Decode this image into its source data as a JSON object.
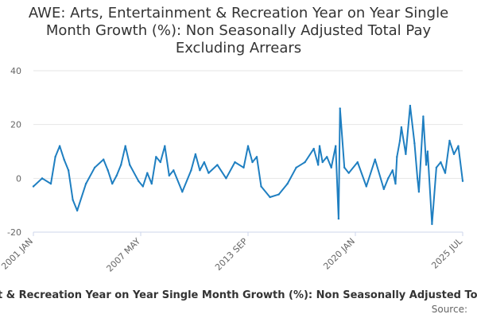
{
  "chart_data": {
    "type": "line",
    "title": "AWE: Arts, Entertainment & Recreation Year on Year Single\nMonth Growth (%): Non Seasonally Adjusted Total Pay\nExcluding Arrears",
    "xlabel": "",
    "ylabel": "",
    "x_ticks": [
      "2001 JAN",
      "2007 MAY",
      "2013 SEP",
      "2020 JAN",
      "2025 JUL"
    ],
    "y_ticks": [
      -20,
      0,
      20,
      40
    ],
    "ylim": [
      -20,
      40
    ],
    "xlim": [
      "2001-01",
      "2025-07"
    ],
    "grid": true,
    "legend": {
      "placement": "bottom",
      "label": "AWE: Arts, Entertainment & Recreation Year on Year Single Month Growth (%): Non Seasonally Adjusted Total Pay Excluding Arrears"
    },
    "source_label": "Source:",
    "line_color": "#1f7fc1",
    "series": [
      {
        "x": [
          "2001-01",
          "2001-07",
          "2002-01",
          "2002-04",
          "2002-07",
          "2002-10",
          "2003-01",
          "2003-04",
          "2003-07",
          "2004-01",
          "2004-07",
          "2005-01",
          "2005-04",
          "2005-07",
          "2005-10",
          "2006-01",
          "2006-04",
          "2006-07",
          "2007-01",
          "2007-04",
          "2007-07",
          "2007-10",
          "2008-01",
          "2008-04",
          "2008-07",
          "2008-10",
          "2009-01",
          "2009-07",
          "2010-01",
          "2010-04",
          "2010-07",
          "2010-10",
          "2011-01",
          "2011-07",
          "2012-01",
          "2012-07",
          "2013-01",
          "2013-04",
          "2013-07",
          "2013-10",
          "2014-01",
          "2014-07",
          "2015-01",
          "2015-07",
          "2016-01",
          "2016-07",
          "2017-01",
          "2017-04",
          "2017-05",
          "2017-07",
          "2017-10",
          "2018-01",
          "2018-04",
          "2018-06",
          "2018-07",
          "2018-10",
          "2019-01",
          "2019-07",
          "2020-01",
          "2020-07",
          "2021-01",
          "2021-04",
          "2021-07",
          "2021-09",
          "2021-10",
          "2021-12",
          "2022-01",
          "2022-04",
          "2022-07",
          "2022-10",
          "2022-12",
          "2023-01",
          "2023-04",
          "2023-06",
          "2023-07",
          "2023-10",
          "2024-01",
          "2024-04",
          "2024-07",
          "2024-10",
          "2025-01",
          "2025-04",
          "2025-07"
        ],
        "values": [
          -3,
          0,
          -2,
          8,
          12,
          7,
          3,
          -8,
          -12,
          -2,
          4,
          7,
          3,
          -2,
          1,
          5,
          12,
          5,
          -1,
          -3,
          2,
          -2,
          8,
          6,
          12,
          1,
          3,
          -5,
          3,
          9,
          3,
          6,
          2,
          5,
          0,
          6,
          4,
          12,
          6,
          8,
          -3,
          -7,
          -6,
          -2,
          4,
          6,
          11,
          5,
          12,
          6,
          8,
          4,
          12,
          -15,
          26,
          4,
          2,
          6,
          -3,
          7,
          -4,
          0,
          3,
          -2,
          8,
          14,
          19,
          9,
          27,
          13,
          0,
          -5,
          23,
          5,
          10,
          -17,
          4,
          6,
          2,
          14,
          9,
          12,
          -1
        ]
      }
    ]
  }
}
